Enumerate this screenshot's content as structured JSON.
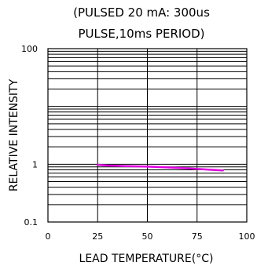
{
  "chart_data": {
    "type": "line",
    "title_lines": [
      "(PULSED 20 mA: 300us",
      "PULSE,10ms PERIOD)"
    ],
    "xlabel": "LEAD TEMPERATURE(°C)",
    "ylabel": "RELATIVE INTENSITY",
    "xlim": [
      0,
      100
    ],
    "ylim": [
      0.1,
      100
    ],
    "y_scale": "log",
    "x_ticks": [
      0,
      25,
      50,
      75,
      100
    ],
    "y_ticks": [
      0.1,
      1,
      100
    ],
    "x_tick_labels": [
      "0",
      "25",
      "50",
      "75",
      "100"
    ],
    "y_tick_labels": [
      "0.1",
      "1",
      "100"
    ],
    "grid": true,
    "series": [
      {
        "color": "#e000e0",
        "x": [
          25,
          30,
          40,
          50,
          60,
          70,
          80,
          88
        ],
        "y": [
          0.98,
          0.95,
          0.93,
          0.91,
          0.88,
          0.85,
          0.81,
          0.78
        ]
      }
    ]
  }
}
